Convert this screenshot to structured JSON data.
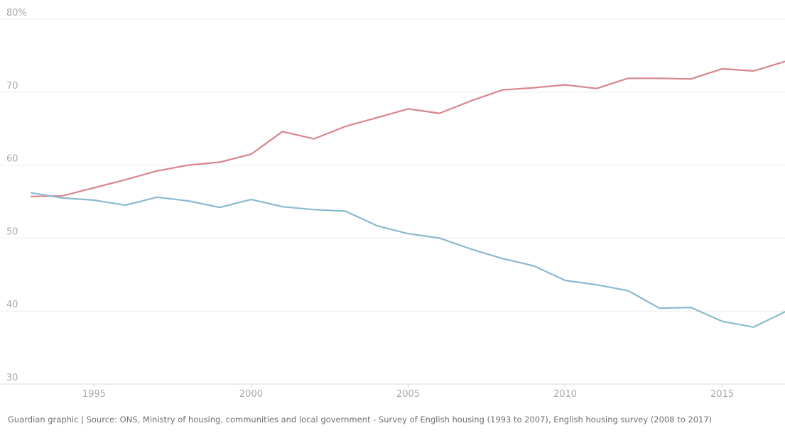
{
  "source": "Guardian graphic | Source: ONS, Ministry of housing, communities and local government - Survey of English housing (1993 to 2007), English housing survey (2008 to 2017)",
  "colors": {
    "red_series": "#d7868d",
    "blue_series": "#8ab9cf",
    "grid": "#ececec",
    "tick_text": "#a8a8a8"
  },
  "chart_data": {
    "type": "line",
    "title": "",
    "xlabel": "",
    "ylabel": "",
    "xlim": [
      1993,
      2017
    ],
    "ylim": [
      30,
      80
    ],
    "y_ticks": [
      30,
      40,
      50,
      60,
      70,
      80
    ],
    "y_tick_labels": [
      "30",
      "40",
      "50",
      "60",
      "70",
      "80%"
    ],
    "x_ticks": [
      1995,
      2000,
      2005,
      2010,
      2015
    ],
    "x_tick_labels": [
      "1995",
      "2000",
      "2005",
      "2010",
      "2015"
    ],
    "grid": true,
    "legend": "none",
    "x": [
      1993,
      1994,
      1995,
      1996,
      1997,
      1998,
      1999,
      2000,
      2001,
      2002,
      2003,
      2004,
      2005,
      2006,
      2007,
      2008,
      2009,
      2010,
      2011,
      2012,
      2013,
      2014,
      2015,
      2016,
      2017
    ],
    "series": [
      {
        "color": "#d7868d",
        "values": [
          55.7,
          55.8,
          56.9,
          58.0,
          59.2,
          60.0,
          60.4,
          61.5,
          64.6,
          63.6,
          65.3,
          66.5,
          67.7,
          67.1,
          68.8,
          70.3,
          70.6,
          71.0,
          70.5,
          71.9,
          71.9,
          71.8,
          73.2,
          72.9,
          74.2
        ]
      },
      {
        "color": "#8ab9cf",
        "values": [
          56.2,
          55.5,
          55.2,
          54.5,
          55.6,
          55.1,
          54.2,
          55.3,
          54.3,
          53.9,
          53.7,
          51.7,
          50.6,
          50.0,
          48.5,
          47.2,
          46.2,
          44.2,
          43.6,
          42.8,
          40.4,
          40.5,
          38.6,
          37.8,
          39.9
        ]
      }
    ]
  }
}
